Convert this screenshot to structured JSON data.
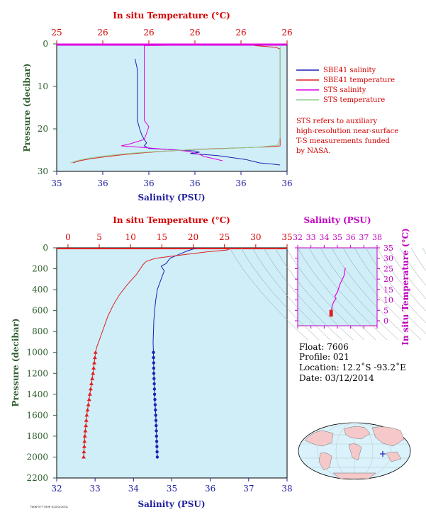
{
  "colors": {
    "plot_bg": "#cfeef8",
    "salinity": "#1e1eb4",
    "temperature": "#e02020",
    "sts_salinity": "#e000e0",
    "sts_temperature": "#8ed08e",
    "axis_red": "#d40000",
    "axis_blue": "#1e1e9e",
    "axis_green": "#2e5e2e",
    "axis_magenta": "#c000c0"
  },
  "top_chart": {
    "title_top": "In situ Temperature (°C)",
    "temp_ticks": [
      "25",
      "26",
      "26",
      "26",
      "26",
      "26"
    ],
    "sal_ticks": [
      "35",
      "36",
      "36",
      "36",
      "36",
      "36"
    ],
    "pressure_ticks": [
      "0",
      "10",
      "20",
      "30"
    ],
    "ylabel": "Pressure (decibar)",
    "xlabel": "Salinity (PSU)"
  },
  "legend": {
    "items": [
      {
        "label": "SBE41 salinity",
        "color": "#1e1eb4"
      },
      {
        "label": "SBE41 temperature",
        "color": "#e02020"
      },
      {
        "label": "STS salinity",
        "color": "#e000e0"
      },
      {
        "label": "STS temperature",
        "color": "#8ed08e"
      }
    ],
    "note_lines": [
      "STS refers to auxiliary",
      "high-resolution near-surface",
      "T-S measurements funded",
      "by NASA."
    ]
  },
  "bottom_chart": {
    "title_top": "In situ Temperature (°C)",
    "temp_ticks": [
      "0",
      "5",
      "10",
      "15",
      "20",
      "25",
      "30",
      "35"
    ],
    "sal_ticks": [
      "32",
      "33",
      "34",
      "35",
      "36",
      "37",
      "38"
    ],
    "pressure_ticks": [
      "0",
      "200",
      "400",
      "600",
      "800",
      "1000",
      "1200",
      "1400",
      "1600",
      "1800",
      "2000",
      "2200"
    ],
    "ylabel": "Pressure (decibar)",
    "xlabel": "Salinity (PSU)"
  },
  "ts_inset": {
    "title_top": "Salinity (PSU)",
    "sal_ticks": [
      "32",
      "33",
      "34",
      "35",
      "36",
      "37",
      "38"
    ],
    "temp_ticks": [
      "0",
      "5",
      "10",
      "15",
      "20",
      "25",
      "30",
      "35"
    ],
    "ylabel": "In situ Temperature (°C)"
  },
  "float_info": {
    "float": "Float:  7606",
    "profile": "Profile:  021",
    "location": "Location:  12.2˚S  -93.2˚E",
    "date": "Date:  03/12/2014"
  },
  "footer_code": "7606-0777000 02/03/2014",
  "chart_data": [
    {
      "type": "line",
      "name": "top-near-surface-profile",
      "title": "In situ Temperature (°C)",
      "xlabel": "Salinity (PSU)",
      "ylabel": "Pressure (decibar)",
      "salinity_range": [
        35.0,
        36.0
      ],
      "temperature_range": [
        25.0,
        26.0
      ],
      "ylim": [
        30,
        0
      ],
      "series": [
        {
          "name": "SBE41 salinity",
          "axis": "salinity",
          "points": [
            [
              35.34,
              3.5
            ],
            [
              35.35,
              6
            ],
            [
              35.35,
              10
            ],
            [
              35.35,
              14
            ],
            [
              35.35,
              18
            ],
            [
              35.36,
              20
            ],
            [
              35.37,
              21.5
            ],
            [
              35.38,
              22.5
            ],
            [
              35.39,
              23.3
            ],
            [
              35.38,
              24.0
            ],
            [
              35.4,
              24.6
            ],
            [
              35.5,
              24.9
            ],
            [
              35.6,
              25.2
            ],
            [
              35.62,
              25.5
            ],
            [
              35.58,
              25.8
            ],
            [
              35.7,
              26.3
            ],
            [
              35.82,
              27.2
            ],
            [
              35.85,
              27.6
            ],
            [
              35.88,
              28.0
            ],
            [
              35.92,
              28.2
            ],
            [
              35.97,
              28.5
            ]
          ]
        },
        {
          "name": "SBE41 temperature",
          "axis": "temperature",
          "points": [
            [
              25.86,
              0.4
            ],
            [
              25.95,
              0.8
            ],
            [
              25.97,
              1.2
            ],
            [
              25.97,
              6
            ],
            [
              25.97,
              12
            ],
            [
              25.97,
              18
            ],
            [
              25.97,
              22
            ],
            [
              25.97,
              24
            ],
            [
              25.93,
              24.2
            ],
            [
              25.78,
              24.5
            ],
            [
              25.62,
              24.8
            ],
            [
              25.48,
              25.2
            ],
            [
              25.38,
              25.6
            ],
            [
              25.3,
              26.0
            ],
            [
              25.22,
              26.5
            ],
            [
              25.15,
              27.0
            ],
            [
              25.1,
              27.5
            ],
            [
              25.07,
              28.0
            ]
          ]
        },
        {
          "name": "STS salinity",
          "axis": "salinity",
          "points": [
            [
              35.78,
              0.2
            ],
            [
              35.38,
              0.4
            ],
            [
              35.38,
              1.0
            ],
            [
              35.38,
              5
            ],
            [
              35.38,
              10
            ],
            [
              35.38,
              15
            ],
            [
              35.38,
              18
            ],
            [
              35.4,
              19.5
            ],
            [
              35.39,
              21
            ],
            [
              35.38,
              22.5
            ],
            [
              35.32,
              23.5
            ],
            [
              35.28,
              24.0
            ],
            [
              35.38,
              24.4
            ],
            [
              35.45,
              24.7
            ],
            [
              35.52,
              25.0
            ],
            [
              35.57,
              25.3
            ],
            [
              35.6,
              25.7
            ],
            [
              35.62,
              26.0
            ],
            [
              35.64,
              26.5
            ],
            [
              35.68,
              27.0
            ],
            [
              35.72,
              27.5
            ]
          ]
        },
        {
          "name": "STS temperature",
          "axis": "temperature",
          "points": [
            [
              25.97,
              0.3
            ],
            [
              25.97,
              1
            ],
            [
              25.97,
              6
            ],
            [
              25.97,
              12
            ],
            [
              25.97,
              18
            ],
            [
              25.97,
              22
            ],
            [
              25.96,
              23.8
            ],
            [
              25.88,
              24.3
            ],
            [
              25.7,
              24.7
            ],
            [
              25.5,
              25.1
            ],
            [
              25.35,
              25.6
            ],
            [
              25.25,
              26.1
            ],
            [
              25.16,
              26.7
            ],
            [
              25.1,
              27.3
            ],
            [
              25.06,
              28.0
            ]
          ]
        }
      ]
    },
    {
      "type": "line",
      "name": "full-depth-profile",
      "title": "In situ Temperature (°C)",
      "xlabel": "Salinity (PSU)",
      "ylabel": "Pressure (decibar)",
      "salinity_range": [
        32,
        38
      ],
      "temperature_range": [
        0,
        35
      ],
      "ylim": [
        2200,
        0
      ],
      "series": [
        {
          "name": "SBE41 salinity",
          "axis": "salinity",
          "points": [
            [
              35.62,
              5
            ],
            [
              35.4,
              30
            ],
            [
              35.2,
              60
            ],
            [
              34.95,
              100
            ],
            [
              34.85,
              150
            ],
            [
              34.72,
              175
            ],
            [
              34.8,
              220
            ],
            [
              34.72,
              300
            ],
            [
              34.62,
              400
            ],
            [
              34.58,
              500
            ],
            [
              34.55,
              600
            ],
            [
              34.53,
              700
            ],
            [
              34.52,
              800
            ],
            [
              34.51,
              900
            ],
            [
              34.52,
              1000
            ],
            [
              34.53,
              1200
            ],
            [
              34.55,
              1400
            ],
            [
              34.58,
              1600
            ],
            [
              34.6,
              1800
            ],
            [
              34.62,
              2000
            ]
          ]
        },
        {
          "name": "SBE41 temperature",
          "axis": "temperature",
          "points": [
            [
              26.0,
              5
            ],
            [
              25.5,
              20
            ],
            [
              22.0,
              40
            ],
            [
              18.0,
              70
            ],
            [
              14.0,
              100
            ],
            [
              12.5,
              130
            ],
            [
              12.0,
              160
            ],
            [
              11.0,
              250
            ],
            [
              9.5,
              350
            ],
            [
              8.2,
              450
            ],
            [
              7.2,
              550
            ],
            [
              6.4,
              650
            ],
            [
              5.8,
              750
            ],
            [
              5.2,
              850
            ],
            [
              4.6,
              950
            ],
            [
              4.4,
              1000
            ],
            [
              4.0,
              1200
            ],
            [
              3.5,
              1400
            ],
            [
              3.0,
              1600
            ],
            [
              2.7,
              1800
            ],
            [
              2.5,
              2000
            ]
          ]
        }
      ],
      "sampled_markers": {
        "pressures": [
          1000,
          1050,
          1100,
          1150,
          1200,
          1250,
          1300,
          1350,
          1400,
          1450,
          1500,
          1550,
          1600,
          1650,
          1700,
          1750,
          1800,
          1850,
          1900,
          1950,
          2000
        ]
      }
    },
    {
      "type": "line",
      "name": "ts-diagram",
      "title": "Salinity (PSU)",
      "ylabel": "In situ Temperature (°C)",
      "salinity_range": [
        32,
        38
      ],
      "temperature_range": [
        0,
        35
      ],
      "series": [
        {
          "name": "T-S curve",
          "points": [
            [
              35.6,
              26
            ],
            [
              35.5,
              22
            ],
            [
              35.2,
              18
            ],
            [
              35.0,
              14
            ],
            [
              34.8,
              12
            ],
            [
              34.9,
              11
            ],
            [
              34.7,
              9
            ],
            [
              34.6,
              7
            ],
            [
              34.55,
              5
            ],
            [
              34.55,
              4
            ],
            [
              34.6,
              3
            ],
            [
              34.62,
              2.5
            ]
          ]
        }
      ]
    }
  ]
}
